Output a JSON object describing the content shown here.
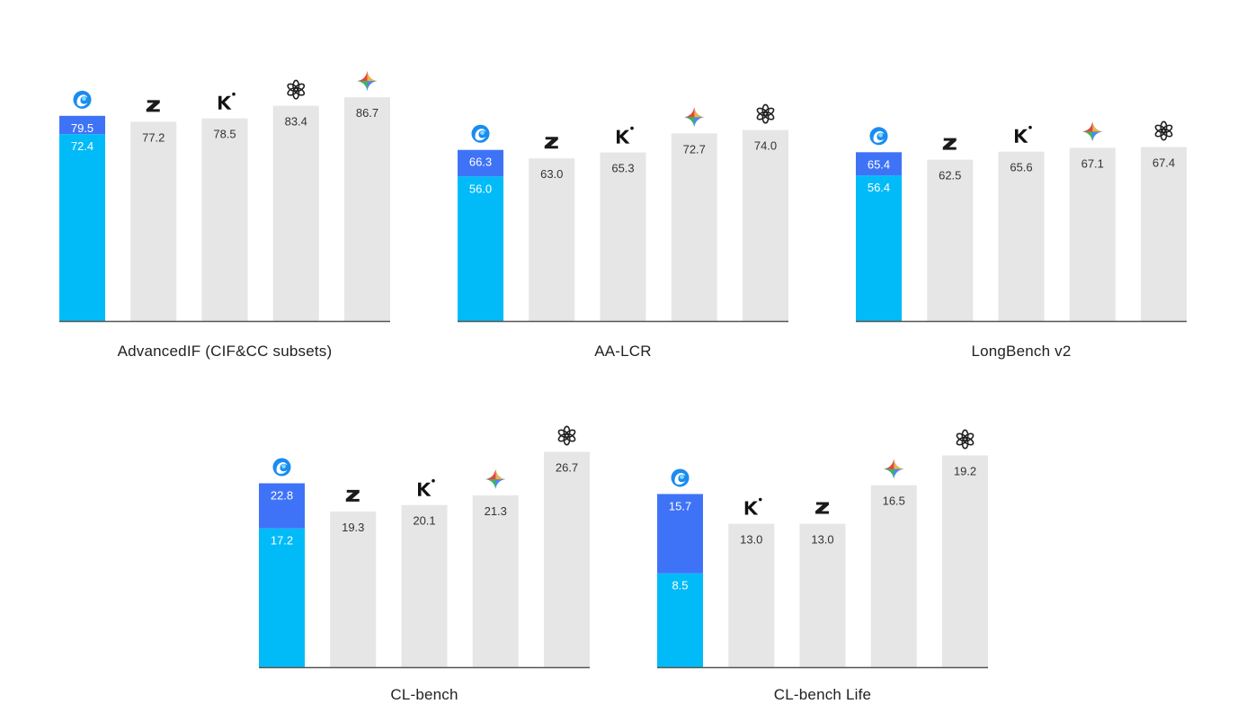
{
  "colors": {
    "base": "#00bbf8",
    "boost": "#3f73f7",
    "bar": "#e6e6e6",
    "axis": "#555555",
    "inside_label": "#ffffff",
    "value_label": "#333333"
  },
  "chart_data": [
    {
      "type": "bar",
      "title": "AdvancedIF (CIF&CC subsets)",
      "ylim": [
        0,
        100
      ],
      "bars": [
        {
          "model": "model-a",
          "icon": "swirl-logo-icon",
          "base": 72.4,
          "value": 79.5,
          "base_label": "72.4",
          "value_label": "79.5"
        },
        {
          "model": "model-z",
          "icon": "z-logo-icon",
          "value": 77.2,
          "value_label": "77.2"
        },
        {
          "model": "model-k",
          "icon": "k-logo-icon",
          "value": 78.5,
          "value_label": "78.5"
        },
        {
          "model": "model-openai",
          "icon": "openai-logo-icon",
          "value": 83.4,
          "value_label": "83.4"
        },
        {
          "model": "model-gemini",
          "icon": "gemini-star-icon",
          "value": 86.7,
          "value_label": "86.7"
        }
      ]
    },
    {
      "type": "bar",
      "title": "AA-LCR",
      "ylim": [
        0,
        100
      ],
      "bars": [
        {
          "model": "model-a",
          "icon": "swirl-logo-icon",
          "base": 56.0,
          "value": 66.3,
          "base_label": "56.0",
          "value_label": "66.3"
        },
        {
          "model": "model-z",
          "icon": "z-logo-icon",
          "value": 63.0,
          "value_label": "63.0"
        },
        {
          "model": "model-k",
          "icon": "k-logo-icon",
          "value": 65.3,
          "value_label": "65.3"
        },
        {
          "model": "model-gemini",
          "icon": "gemini-star-icon",
          "value": 72.7,
          "value_label": "72.7"
        },
        {
          "model": "model-openai",
          "icon": "openai-logo-icon",
          "value": 74.0,
          "value_label": "74.0"
        }
      ]
    },
    {
      "type": "bar",
      "title": "LongBench v2",
      "ylim": [
        0,
        100
      ],
      "bars": [
        {
          "model": "model-a",
          "icon": "swirl-logo-icon",
          "base": 56.4,
          "value": 65.4,
          "base_label": "56.4",
          "value_label": "65.4"
        },
        {
          "model": "model-z",
          "icon": "z-logo-icon",
          "value": 62.5,
          "value_label": "62.5"
        },
        {
          "model": "model-k",
          "icon": "k-logo-icon",
          "value": 65.6,
          "value_label": "65.6"
        },
        {
          "model": "model-gemini",
          "icon": "gemini-star-icon",
          "value": 67.1,
          "value_label": "67.1"
        },
        {
          "model": "model-openai",
          "icon": "openai-logo-icon",
          "value": 67.4,
          "value_label": "67.4"
        }
      ]
    },
    {
      "type": "bar",
      "title": "CL-bench",
      "ylim": [
        0,
        32
      ],
      "bars": [
        {
          "model": "model-a",
          "icon": "swirl-logo-icon",
          "base": 17.2,
          "value": 22.8,
          "base_label": "17.2",
          "value_label": "22.8"
        },
        {
          "model": "model-z",
          "icon": "z-logo-icon",
          "value": 19.3,
          "value_label": "19.3"
        },
        {
          "model": "model-k",
          "icon": "k-logo-icon",
          "value": 20.1,
          "value_label": "20.1"
        },
        {
          "model": "model-gemini",
          "icon": "gemini-star-icon",
          "value": 21.3,
          "value_label": "21.3"
        },
        {
          "model": "model-openai",
          "icon": "openai-logo-icon",
          "value": 26.7,
          "value_label": "26.7"
        }
      ]
    },
    {
      "type": "bar",
      "title": "CL-bench Life",
      "ylim": [
        0,
        23.4
      ],
      "bars": [
        {
          "model": "model-a",
          "icon": "swirl-logo-icon",
          "base": 8.5,
          "value": 15.7,
          "base_label": "8.5",
          "value_label": "15.7"
        },
        {
          "model": "model-k",
          "icon": "k-logo-icon",
          "value": 13.0,
          "value_label": "13.0"
        },
        {
          "model": "model-z",
          "icon": "z-logo-icon",
          "value": 13.0,
          "value_label": "13.0"
        },
        {
          "model": "model-gemini",
          "icon": "gemini-star-icon",
          "value": 16.5,
          "value_label": "16.5"
        },
        {
          "model": "model-openai",
          "icon": "openai-logo-icon",
          "value": 19.2,
          "value_label": "19.2"
        }
      ]
    }
  ]
}
